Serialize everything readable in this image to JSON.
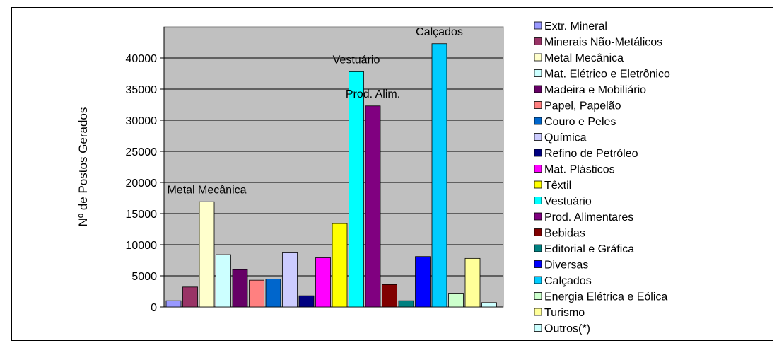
{
  "chart_data": {
    "type": "bar",
    "title": "",
    "xlabel": "",
    "ylabel": "Nº de Postos Gerados",
    "ylim": [
      0,
      45000
    ],
    "yticks": [
      0,
      5000,
      10000,
      15000,
      20000,
      25000,
      30000,
      35000,
      40000
    ],
    "grid": true,
    "legend_position": "right",
    "plot_background": "#c0c0c0",
    "categories": [
      "Extr. Mineral",
      "Minerais Não-Metálicos",
      "Metal Mecânica",
      "Mat. Elétrico e Eletrônico",
      "Madeira e Mobiliário",
      "Papel, Papelão",
      "Couro e Peles",
      "Química",
      "Refino de Petróleo",
      "Mat. Plásticos",
      "Têxtil",
      "Vestuário",
      "Prod. Alimentares",
      "Bebidas",
      "Editorial e Gráfica",
      "Diversas",
      "Calçados",
      "Energia Elétrica e Eólica",
      "Turismo",
      "Outros(*)"
    ],
    "values": [
      1000,
      3200,
      16900,
      8400,
      6000,
      4300,
      4500,
      8700,
      1800,
      7900,
      13400,
      37800,
      32300,
      3600,
      1000,
      8100,
      42300,
      2100,
      7800,
      700
    ],
    "colors": [
      "#9999ff",
      "#993366",
      "#ffffcc",
      "#ccffff",
      "#660066",
      "#ff8080",
      "#0066cc",
      "#ccccff",
      "#000080",
      "#ff00ff",
      "#ffff00",
      "#00ffff",
      "#800080",
      "#800000",
      "#008080",
      "#0000ff",
      "#00ccff",
      "#ccffcc",
      "#ffff99",
      "#ccffff"
    ],
    "annotations": [
      {
        "text": "Metal Mecânica",
        "category": "Metal Mecânica"
      },
      {
        "text": "Vestuário",
        "category": "Vestuário"
      },
      {
        "text": "Prod. Alim.",
        "category": "Prod. Alimentares"
      },
      {
        "text": "Calçados",
        "category": "Calçados"
      }
    ]
  }
}
